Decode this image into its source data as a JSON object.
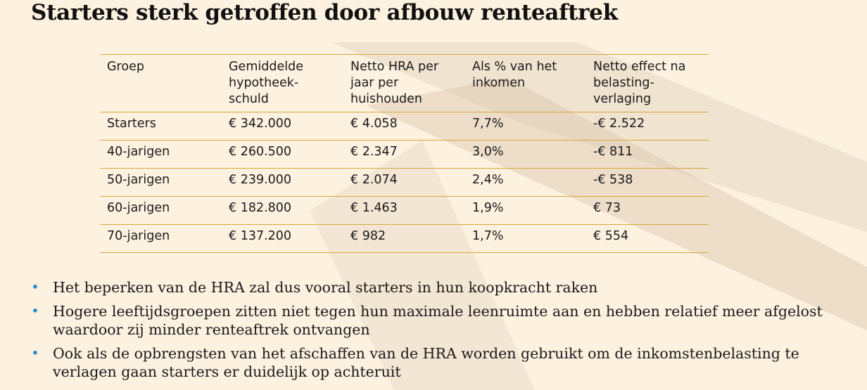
{
  "slide": {
    "title": "Starters sterk getroffen door afbouw renteaftrek"
  },
  "table": {
    "headers": [
      "Groep",
      "Gemiddelde hypotheek-schuld",
      "Netto HRA per jaar per huishouden",
      "Als % van het inkomen",
      "Netto effect na belasting-verlaging"
    ],
    "rows": [
      [
        "Starters",
        "€ 342.000",
        "€ 4.058",
        "7,7%",
        "-€ 2.522"
      ],
      [
        "40-jarigen",
        "€ 260.500",
        "€ 2.347",
        "3,0%",
        "-€ 811"
      ],
      [
        "50-jarigen",
        "€ 239.000",
        "€ 2.074",
        "2,4%",
        "-€ 538"
      ],
      [
        "60-jarigen",
        "€ 182.800",
        "€ 1.463",
        "1,9%",
        "€ 73"
      ],
      [
        "70-jarigen",
        "€ 137.200",
        "€ 982",
        "1,7%",
        "€ 554"
      ]
    ]
  },
  "bullets": [
    "Het beperken van de HRA zal dus vooral starters in hun koopkracht raken",
    "Hogere leeftijdsgroepen zitten niet tegen hun maximale leenruimte aan en hebben relatief meer afgelost waardoor zij minder renteaftrek ontvangen",
    "Ook als de opbrengsten van het afschaffen van de HRA worden gebruikt om de inkomstenbelasting te verlagen gaan starters er duidelijk op achteruit"
  ],
  "colors": {
    "background": "#fdf1e0",
    "rule": "#d6a83a",
    "bullet": "#2a8ed0",
    "decor": "#d9c6ad"
  },
  "icons": {
    "bullet": "bullet-dot-icon"
  }
}
